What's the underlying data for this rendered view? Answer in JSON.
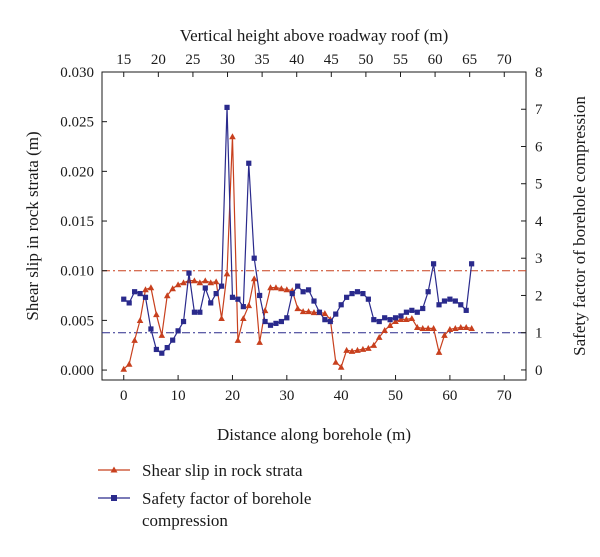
{
  "chart_data": {
    "type": "line",
    "xlabel_bottom": "Distance along borehole (m)",
    "xlabel_top": "Vertical height above roadway roof (m)",
    "ylabel_left": "Shear slip in rock strata (m)",
    "ylabel_right": "Safety factor of borehole compression",
    "xlim": [
      -4,
      74
    ],
    "xticks": [
      0,
      10,
      20,
      30,
      40,
      50,
      60,
      70
    ],
    "xtop_ticks": [
      15,
      20,
      25,
      30,
      35,
      40,
      45,
      50,
      55,
      60,
      65,
      70
    ],
    "xtop_mapping": {
      "top_at_x0": 15,
      "top_per_x": 0.7857
    },
    "ylim_left": [
      -0.001,
      0.03
    ],
    "yticks_left": [
      "0.000",
      "0.005",
      "0.010",
      "0.015",
      "0.020",
      "0.025",
      "0.030"
    ],
    "ylim_right": [
      -0.27,
      8
    ],
    "yticks_right": [
      0,
      1,
      2,
      3,
      4,
      5,
      6,
      7,
      8
    ],
    "reference_lines": [
      {
        "axis": "left",
        "y": 0.01,
        "color": "#c8401e"
      },
      {
        "axis": "right",
        "y": 1.0,
        "color": "#2a2a8c"
      }
    ],
    "legend_position": "bottom-left",
    "series": [
      {
        "name": "Shear slip in rock strata",
        "axis": "left",
        "color": "#c8401e",
        "marker": "triangle",
        "x": [
          0,
          1,
          2,
          3,
          4,
          5,
          6,
          7,
          8,
          9,
          10,
          11,
          12,
          13,
          14,
          15,
          16,
          17,
          18,
          19,
          20,
          21,
          22,
          23,
          24,
          25,
          26,
          27,
          28,
          29,
          30,
          31,
          32,
          33,
          34,
          35,
          36,
          37,
          38,
          39,
          40,
          41,
          42,
          43,
          44,
          45,
          46,
          47,
          48,
          49,
          50,
          51,
          52,
          53,
          54,
          55,
          56,
          57,
          58,
          59,
          60,
          61,
          62,
          63,
          64
        ],
        "y": [
          0.0001,
          0.0006,
          0.003,
          0.005,
          0.0081,
          0.0083,
          0.0056,
          0.0035,
          0.0075,
          0.0082,
          0.0086,
          0.0088,
          0.009,
          0.009,
          0.0088,
          0.009,
          0.0088,
          0.0089,
          0.0052,
          0.0097,
          0.0235,
          0.003,
          0.0052,
          0.0065,
          0.0092,
          0.0028,
          0.006,
          0.0083,
          0.0083,
          0.0082,
          0.0081,
          0.008,
          0.0062,
          0.0059,
          0.0059,
          0.0058,
          0.0058,
          0.0057,
          0.0051,
          0.0008,
          0.0003,
          0.002,
          0.0019,
          0.002,
          0.0021,
          0.0022,
          0.0025,
          0.0033,
          0.004,
          0.0045,
          0.0049,
          0.0051,
          0.0051,
          0.0052,
          0.0043,
          0.0042,
          0.0042,
          0.0042,
          0.0018,
          0.0035,
          0.0041,
          0.0042,
          0.0043,
          0.0043,
          0.0042
        ]
      },
      {
        "name": "Safety factor of borehole compression",
        "axis": "right",
        "color": "#2a2a8c",
        "marker": "square",
        "x": [
          0,
          1,
          2,
          3,
          4,
          5,
          6,
          7,
          8,
          9,
          10,
          11,
          12,
          13,
          14,
          15,
          16,
          17,
          18,
          19,
          20,
          21,
          22,
          23,
          24,
          25,
          26,
          27,
          28,
          29,
          30,
          31,
          32,
          33,
          34,
          35,
          36,
          37,
          38,
          39,
          40,
          41,
          42,
          43,
          44,
          45,
          46,
          47,
          48,
          49,
          50,
          51,
          52,
          53,
          54,
          55,
          56,
          57,
          58,
          59,
          60,
          61,
          62,
          63,
          64
        ],
        "y": [
          1.9,
          1.8,
          2.1,
          2.05,
          1.95,
          1.1,
          0.55,
          0.45,
          0.6,
          0.8,
          1.05,
          1.3,
          2.6,
          1.55,
          1.55,
          2.2,
          1.8,
          2.05,
          2.25,
          7.05,
          1.95,
          1.9,
          1.7,
          5.55,
          3.0,
          2.0,
          1.3,
          1.2,
          1.25,
          1.3,
          1.4,
          2.05,
          2.25,
          2.1,
          2.15,
          1.85,
          1.55,
          1.35,
          1.3,
          1.5,
          1.75,
          1.95,
          2.05,
          2.1,
          2.05,
          1.9,
          1.35,
          1.3,
          1.4,
          1.35,
          1.4,
          1.45,
          1.55,
          1.6,
          1.55,
          1.65,
          2.1,
          2.85,
          1.75,
          1.85,
          1.9,
          1.85,
          1.75,
          1.6,
          2.85
        ]
      }
    ]
  }
}
